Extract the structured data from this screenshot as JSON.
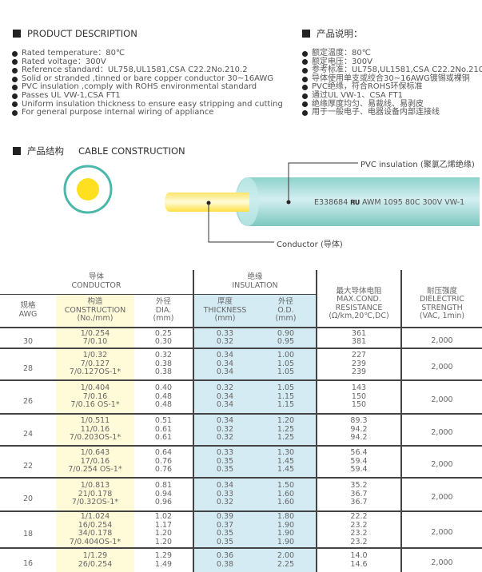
{
  "desc_en": {
    "title": "PRODUCT DESCRIPTION",
    "items": [
      "Rated temperature：80℃",
      "Rated voltage：300V",
      "Reference standard：UL758,UL1581,CSA C22.2No.210.2",
      "Solid or stranded ,tinned or bare copper conductor 30~16AWG",
      "PVC insulation ,comply with ROHS environmental standard",
      "Passes UL VW-1,CSA FT1",
      "Uniform insulation thickness to ensure easy stripping and cutting",
      "For general purpose internal wiring of appliance"
    ]
  },
  "desc_cn": {
    "title": "产品说明：",
    "items": [
      "额定温度：80℃",
      "额定电压：300V",
      "参考标准：UL758,UL1581,CSA C22.2No.210",
      "导体使用单支或绞合30~16AWG镀锡或裸铜",
      "PVC绝缘，符合ROHS环保标准",
      "通过UL VW-1、CSA FT1",
      "绝缘厚度均匀、易裁线、易剥皮",
      "用于一般电子、电器设备内部连接线"
    ]
  },
  "construction": {
    "title_cn": "产品结构",
    "title_en": "CABLE CONSTRUCTION",
    "insulation_label": "PVC insulation (聚氯乙烯绝缘)",
    "conductor_label": "Conductor (导体)",
    "print_code": "E338684",
    "ul_mark": "𝐑𝐔",
    "print_text": "AWM 1095 80C 300V VW-1",
    "colors": {
      "insulation": "#9fd8d4",
      "conductor": "#ffe14a",
      "ring": "#4bb8aa"
    }
  },
  "table": {
    "headers": {
      "conductor": "导体",
      "conductor_en": "CONDUCTOR",
      "insulation": "绝缘",
      "insulation_en": "INSULATION",
      "awg": "规格",
      "awg_en": "AWG",
      "cons": "构造",
      "cons_en": "CONSTRUCTION",
      "cons_unit": "(No./mm)",
      "dia": "外径",
      "dia_en": "DIA.",
      "dia_unit": "(mm)",
      "thk": "厚度",
      "thk_en": "THICKNESS",
      "thk_unit": "(mm)",
      "od": "外径",
      "od_en": "O.D.",
      "od_unit": "(mm)",
      "res": "最大导体电阻",
      "res_en1": "MAX.COND.",
      "res_en2": "RESISTANCE",
      "res_unit": "(Ω/km,20℃,DC)",
      "die": "耐压强度",
      "die_en1": "DIELECTRIC",
      "die_en2": "STRENGTH",
      "die_unit": "(VAC, 1min)"
    },
    "rows": [
      {
        "awg": "30",
        "cons": [
          "1/0.254",
          "7/0.10"
        ],
        "dia": [
          "0.25",
          "0.30"
        ],
        "thk": [
          "0.33",
          "0.32"
        ],
        "od": [
          "0.90",
          "0.95"
        ],
        "res": [
          "361",
          "381"
        ],
        "die": "2,000"
      },
      {
        "awg": "28",
        "cons": [
          "1/0.32",
          "7/0.127",
          "7/0.127OS-1*"
        ],
        "dia": [
          "0.32",
          "0.38",
          "0.38"
        ],
        "thk": [
          "0.34",
          "0.34",
          "0.34"
        ],
        "od": [
          "1.00",
          "1.05",
          "1.05"
        ],
        "res": [
          "227",
          "239",
          "239"
        ],
        "die": "2,000"
      },
      {
        "awg": "26",
        "cons": [
          "1/0.404",
          "7/0.16",
          "7/0.16 OS-1*"
        ],
        "dia": [
          "0.40",
          "0.48",
          "0.48"
        ],
        "thk": [
          "0.32",
          "0.34",
          "0.34"
        ],
        "od": [
          "1.05",
          "1.15",
          "1.15"
        ],
        "res": [
          "143",
          "150",
          "150"
        ],
        "die": "2,000"
      },
      {
        "awg": "24",
        "cons": [
          "1/0.511",
          "11/0.16",
          "7/0.203OS-1*"
        ],
        "dia": [
          "0.51",
          "0.61",
          "0.61"
        ],
        "thk": [
          "0.34",
          "0.32",
          "0.32"
        ],
        "od": [
          "1.20",
          "1.25",
          "1.25"
        ],
        "res": [
          "89.3",
          "94.2",
          "94.2"
        ],
        "die": "2,000"
      },
      {
        "awg": "22",
        "cons": [
          "1/0.643",
          "17/0.16",
          "7/0.254 OS-1*"
        ],
        "dia": [
          "0.64",
          "0.76",
          "0.76"
        ],
        "thk": [
          "0.33",
          "0.35",
          "0.35"
        ],
        "od": [
          "1.30",
          "1.45",
          "1.45"
        ],
        "res": [
          "56.4",
          "59.4",
          "59.4"
        ],
        "die": "2,000"
      },
      {
        "awg": "20",
        "cons": [
          "1/0.813",
          "21/0.178",
          "7/0.32OS-1*"
        ],
        "dia": [
          "0.81",
          "0.94",
          "0.96"
        ],
        "thk": [
          "0.34",
          "0.33",
          "0.32"
        ],
        "od": [
          "1.50",
          "1.60",
          "1.60"
        ],
        "res": [
          "35.2",
          "36.7",
          "36.7"
        ],
        "die": "2,000"
      },
      {
        "awg": "18",
        "cons": [
          "1/1.024",
          "16/0.254",
          "34/0.178",
          "7/0.404OS-1*"
        ],
        "dia": [
          "1.02",
          "1.17",
          "1.20",
          "1.20"
        ],
        "thk": [
          "0.39",
          "0.37",
          "0.35",
          "0.35"
        ],
        "od": [
          "1.80",
          "1.90",
          "1.90",
          "1.90"
        ],
        "res": [
          "22.2",
          "23.2",
          "23.2",
          "23.2"
        ],
        "die": "2,000"
      },
      {
        "awg": "16",
        "cons": [
          "1/1.29",
          "26/0.254"
        ],
        "dia": [
          "1.29",
          "1.49"
        ],
        "thk": [
          "0.36",
          "0.38"
        ],
        "od": [
          "2.00",
          "2.25"
        ],
        "res": [
          "14.0",
          "14.6"
        ],
        "die": "2,000"
      }
    ]
  }
}
